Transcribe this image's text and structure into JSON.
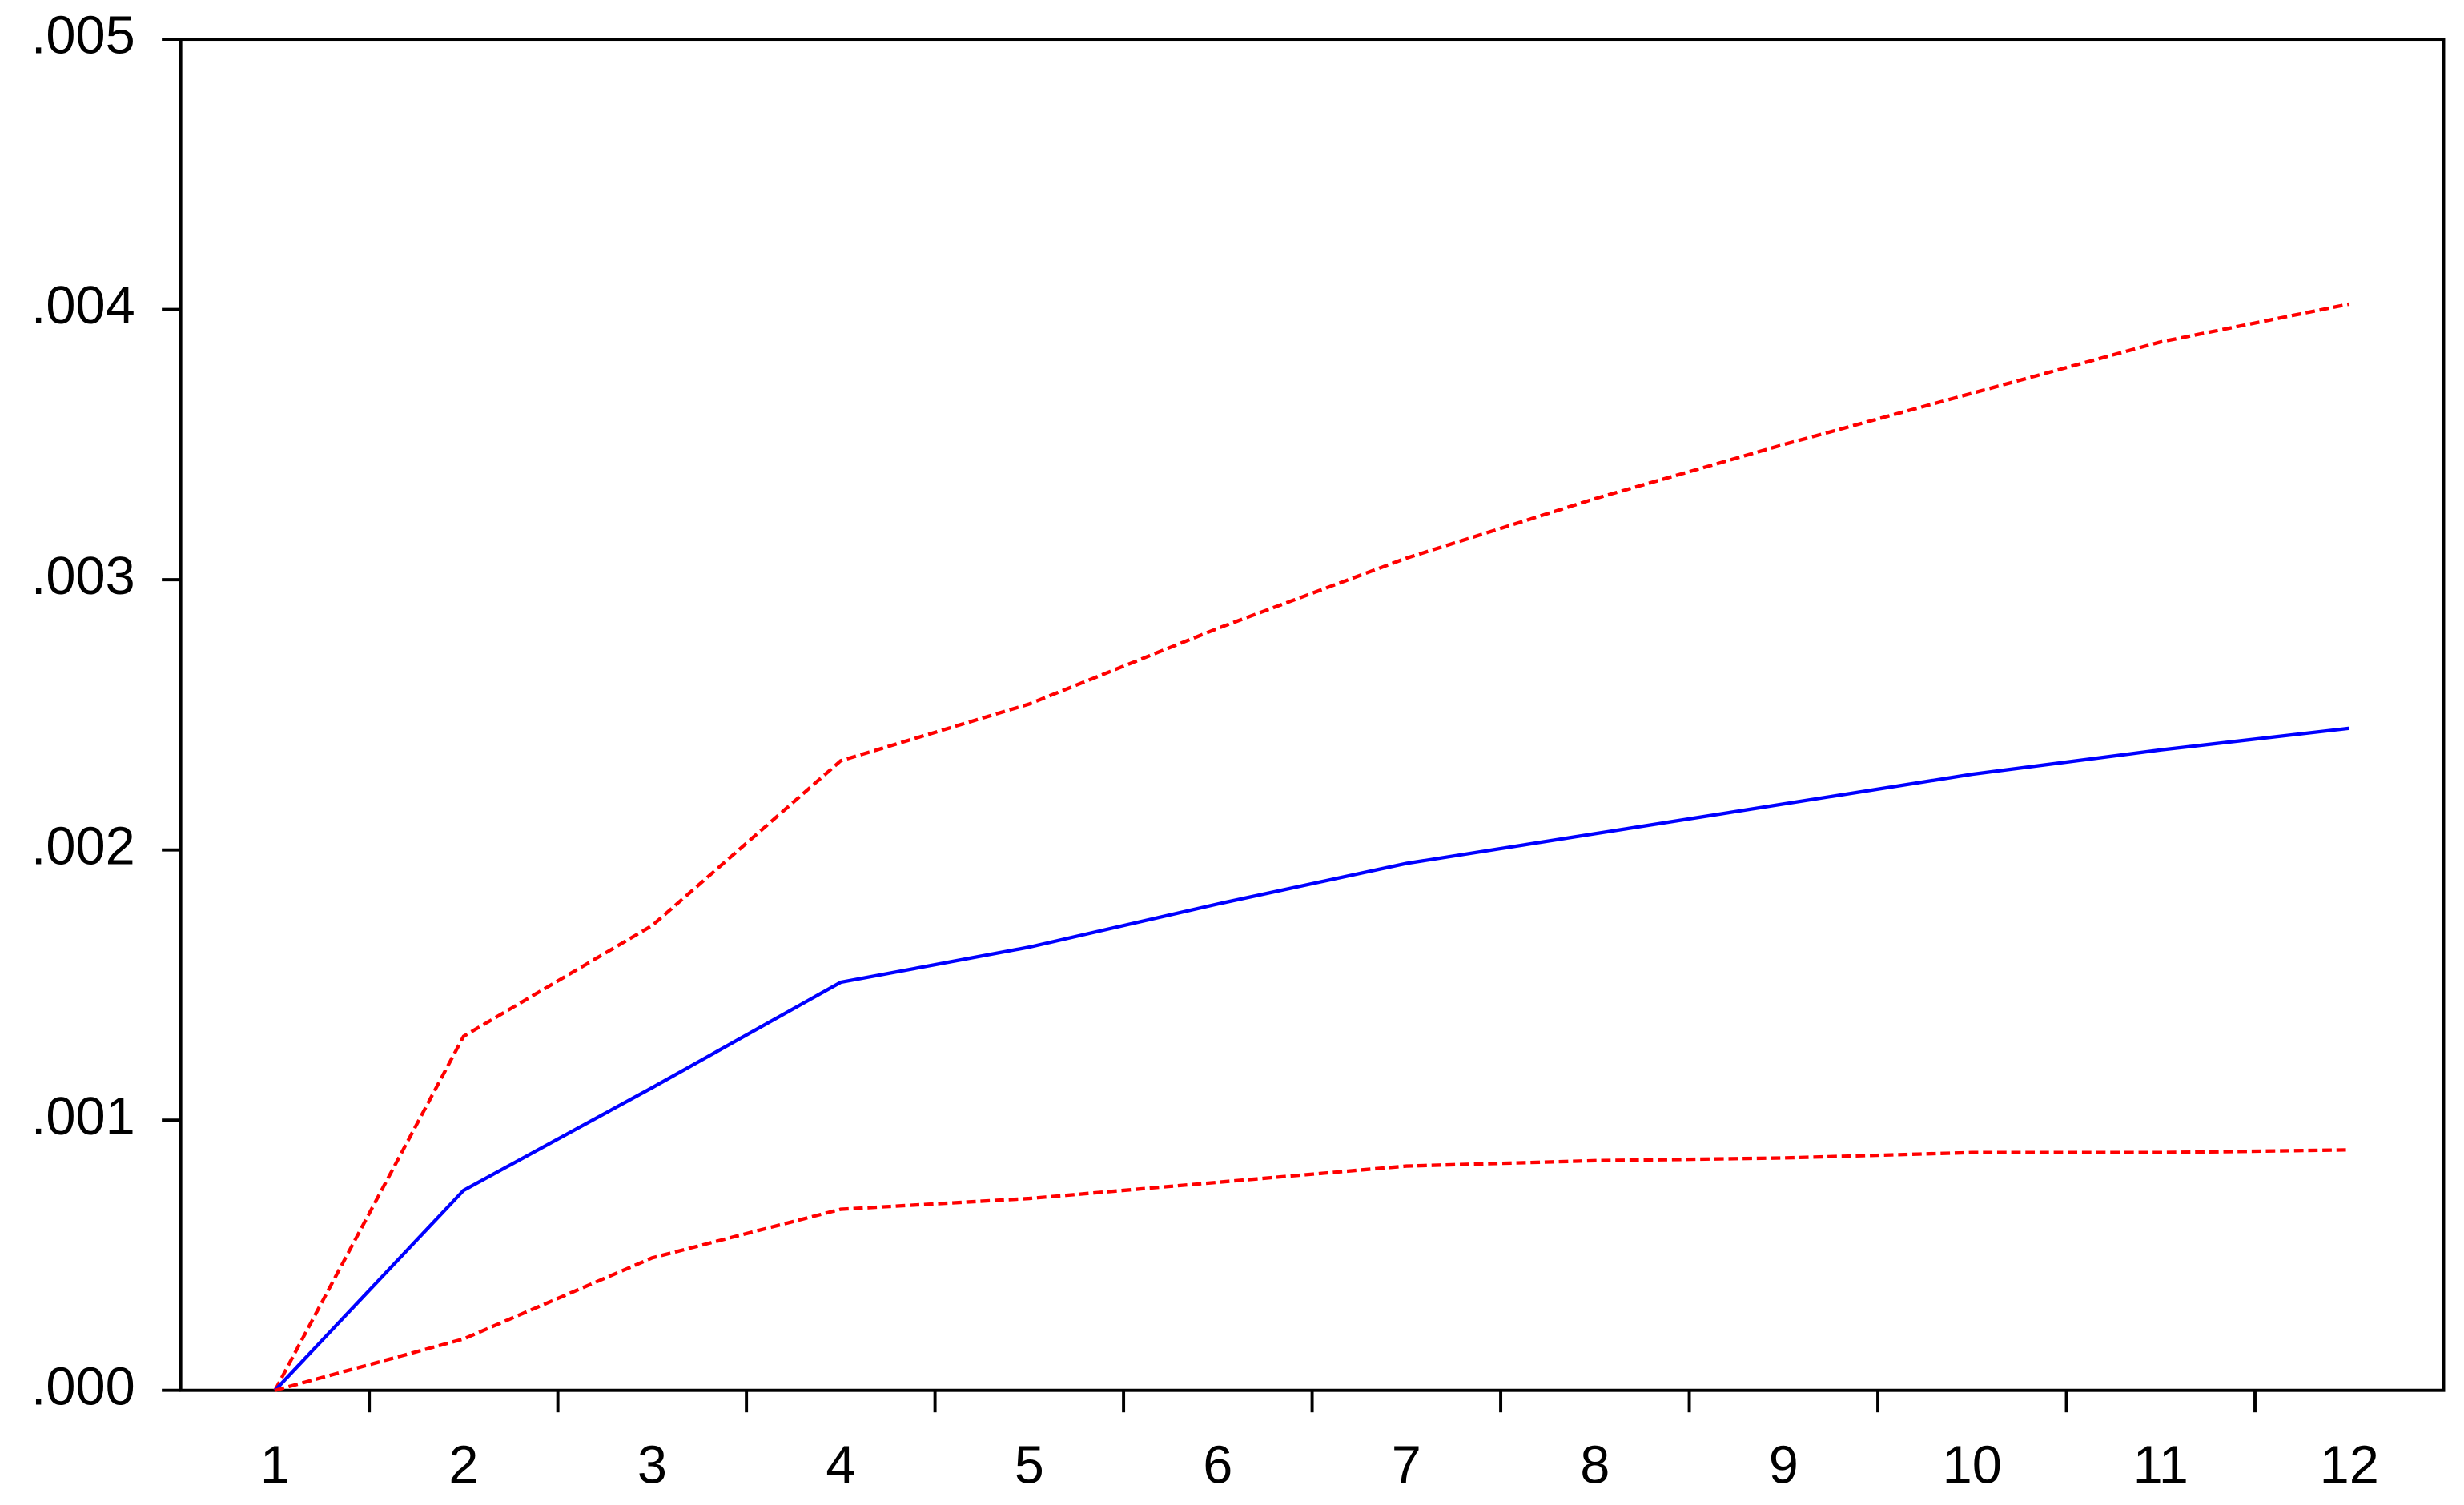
{
  "chart_data": {
    "type": "line",
    "categories": [
      "1",
      "2",
      "3",
      "4",
      "5",
      "6",
      "7",
      "8",
      "9",
      "10",
      "11",
      "12"
    ],
    "series": [
      {
        "color": "#ff0000",
        "dashed": true,
        "values": [
          0,
          0.00131,
          0.00172,
          0.00233,
          0.00254,
          0.00282,
          0.00308,
          0.0033,
          0.0035,
          0.00369,
          0.00388,
          0.00402
        ]
      },
      {
        "color": "#0000ff",
        "dashed": false,
        "values": [
          0,
          0.00074,
          0.00112,
          0.00151,
          0.00164,
          0.0018,
          0.00195,
          0.00206,
          0.00217,
          0.00228,
          0.00237,
          0.00245
        ]
      },
      {
        "color": "#ff0000",
        "dashed": true,
        "values": [
          0,
          0.00019,
          0.00049,
          0.00067,
          0.00071,
          0.00077,
          0.00083,
          0.00085,
          0.00086,
          0.00088,
          0.00088,
          0.00089
        ]
      }
    ],
    "ylim": [
      0,
      0.005
    ],
    "yticks": [
      {
        "value": 0,
        "label": ".000"
      },
      {
        "value": 0.001,
        "label": ".001"
      },
      {
        "value": 0.002,
        "label": ".002"
      },
      {
        "value": 0.003,
        "label": ".003"
      },
      {
        "value": 0.004,
        "label": ".004"
      },
      {
        "value": 0.005,
        "label": ".005"
      }
    ],
    "grid": false
  }
}
